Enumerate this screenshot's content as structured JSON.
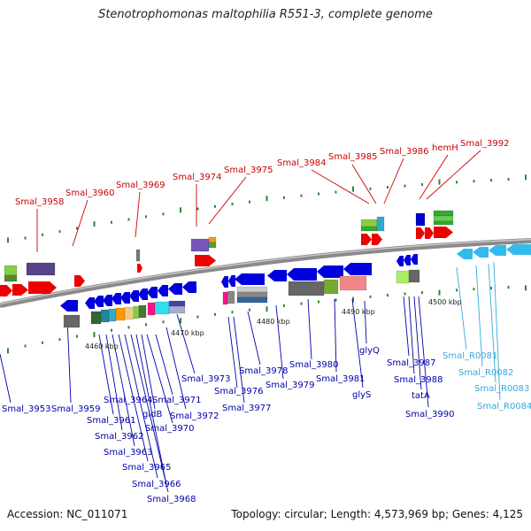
{
  "title": "Stenotrophomonas maltophilia R551-3, complete genome",
  "accession": "Accession: NC_011071",
  "stats": "Topology: circular; Length: 4,573,969 bp; Genes: 4,125",
  "colors": {
    "top_label": "#cc0000",
    "bottom_label": "#0000aa",
    "rna_label": "#33aadd",
    "backbone": "#8a8a8a"
  },
  "scale_labels": [
    "4460 kbp",
    "4470 kbp",
    "4480 kbp",
    "4490 kbp",
    "4500 kbp"
  ],
  "top_labels": [
    "Smal_3958",
    "Smal_3960",
    "Smal_3969",
    "Smal_3974",
    "Smal_3975",
    "Smal_3984",
    "Smal_3985",
    "Smal_3986",
    "hemH",
    "Smal_3992"
  ],
  "bottom_labels": [
    "Smal_3953",
    "Smal_3959",
    "Smal_3961",
    "Smal_3962",
    "Smal_3963",
    "Smal_3964",
    "Smal_3965",
    "Smal_3966",
    "Smal_3968",
    "gidB",
    "Smal_3970",
    "Smal_3971",
    "Smal_3972",
    "Smal_3973",
    "Smal_3976",
    "Smal_3977",
    "Smal_3978",
    "Smal_3979",
    "Smal_3980",
    "Smal_3981",
    "glyS",
    "glyQ",
    "Smal_3987",
    "Smal_3988",
    "tatA",
    "Smal_3990"
  ],
  "rna_labels": [
    "Smal_R0081",
    "Smal_R0082",
    "Smal_R0083",
    "Smal_R0084"
  ]
}
